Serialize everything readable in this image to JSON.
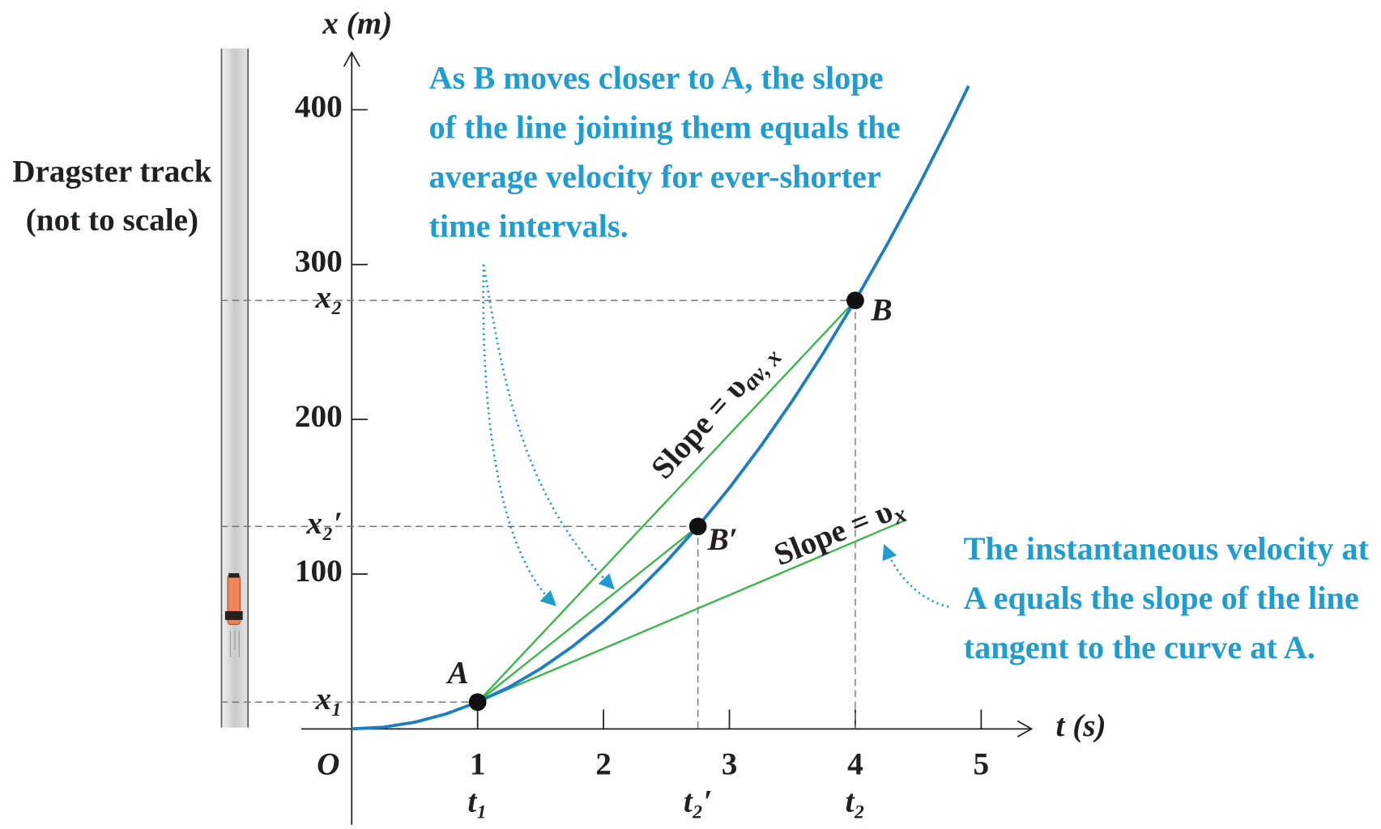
{
  "chart_data": {
    "type": "line",
    "x_label": "t (s)",
    "y_label": "x (m)",
    "origin_label": "O",
    "x": [
      0,
      0.25,
      0.5,
      0.75,
      1,
      1.25,
      1.5,
      1.75,
      2,
      2.25,
      2.5,
      2.75,
      3,
      3.25,
      3.5,
      3.75,
      4,
      4.25,
      4.5,
      4.75,
      4.9
    ],
    "values": [
      0,
      1.1,
      4.3,
      9.7,
      17.3,
      27,
      38.9,
      53,
      69.2,
      87.6,
      108.1,
      130.8,
      155.7,
      182.7,
      211.9,
      243.3,
      276.8,
      312.5,
      350.3,
      390.3,
      415.4
    ],
    "color": "#1b7ec2",
    "xlim": [
      -0.4,
      5.4
    ],
    "ylim": [
      -62,
      437
    ],
    "xticks": [
      1,
      2,
      3,
      4,
      5
    ],
    "yticks": [
      100,
      200,
      300,
      400
    ],
    "points": [
      {
        "label": "A",
        "x": 1,
        "y": 17.3
      },
      {
        "label": "B′",
        "x": 2.75,
        "y": 130.8
      },
      {
        "label": "B",
        "x": 4,
        "y": 276.8
      }
    ],
    "x_guides": [
      {
        "value": 1,
        "label": "t₁"
      },
      {
        "value": 2.75,
        "label": "t₂′"
      },
      {
        "value": 4,
        "label": "t₂"
      }
    ],
    "y_guides": [
      {
        "value": 17.3,
        "label": "x₁"
      },
      {
        "value": 130.8,
        "label": "x₂′"
      },
      {
        "value": 276.8,
        "label": "x₂"
      }
    ],
    "lines": [
      {
        "x": [
          1,
          4
        ],
        "y": [
          17.3,
          276.8
        ],
        "color": "#3cb54a"
      },
      {
        "x": [
          1,
          2.75
        ],
        "y": [
          17.3,
          130.8
        ],
        "color": "#3cb54a"
      },
      {
        "x": [
          1,
          4.4
        ],
        "y": [
          17.3,
          134.9
        ],
        "color": "#3cb54a"
      }
    ],
    "line_labels": [
      {
        "text": "Slope = υ",
        "sub": "av, x"
      },
      {
        "text": "Slope = υ",
        "sub": "x"
      }
    ],
    "annotations": [
      {
        "lines": [
          "As B moves closer to A, the slope",
          "of the line joining them equals the",
          "average velocity for ever-shorter",
          "time intervals."
        ]
      },
      {
        "lines": [
          "The instantaneous velocity at",
          "A equals the slope of the line",
          "tangent to the curve at A."
        ]
      }
    ],
    "track_label": [
      "Dragster track",
      "(not to scale)"
    ]
  }
}
